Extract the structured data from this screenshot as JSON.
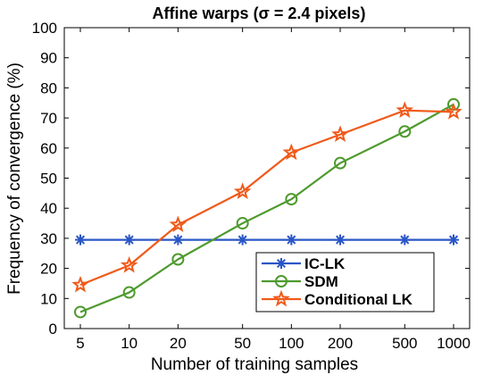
{
  "chart_data": {
    "type": "line",
    "title": "Affine warps (σ = 2.4 pixels)",
    "xlabel": "Number of training samples",
    "ylabel": "Frequency of convergence (%)",
    "x_scale": "log",
    "categories": [
      "5",
      "10",
      "20",
      "50",
      "100",
      "200",
      "500",
      "1000"
    ],
    "x": [
      5,
      10,
      20,
      50,
      100,
      200,
      500,
      1000
    ],
    "ylim": [
      0,
      100
    ],
    "yticks": [
      0,
      10,
      20,
      30,
      40,
      50,
      60,
      70,
      80,
      90,
      100
    ],
    "grid": false,
    "legend_position": "bottom-right",
    "series": [
      {
        "name": "IC-LK",
        "color": "#2a56c6",
        "marker": "asterisk",
        "values": [
          29.5,
          29.5,
          29.5,
          29.5,
          29.5,
          29.5,
          29.5,
          29.5
        ]
      },
      {
        "name": "SDM",
        "color": "#4e9a2e",
        "marker": "circle",
        "values": [
          5.5,
          12,
          23,
          35,
          43,
          55,
          65.5,
          74.5
        ]
      },
      {
        "name": "Conditional LK",
        "color": "#f05a1a",
        "marker": "star",
        "values": [
          14.5,
          21,
          34.5,
          45.5,
          58.5,
          64.5,
          72.5,
          72
        ]
      }
    ]
  }
}
